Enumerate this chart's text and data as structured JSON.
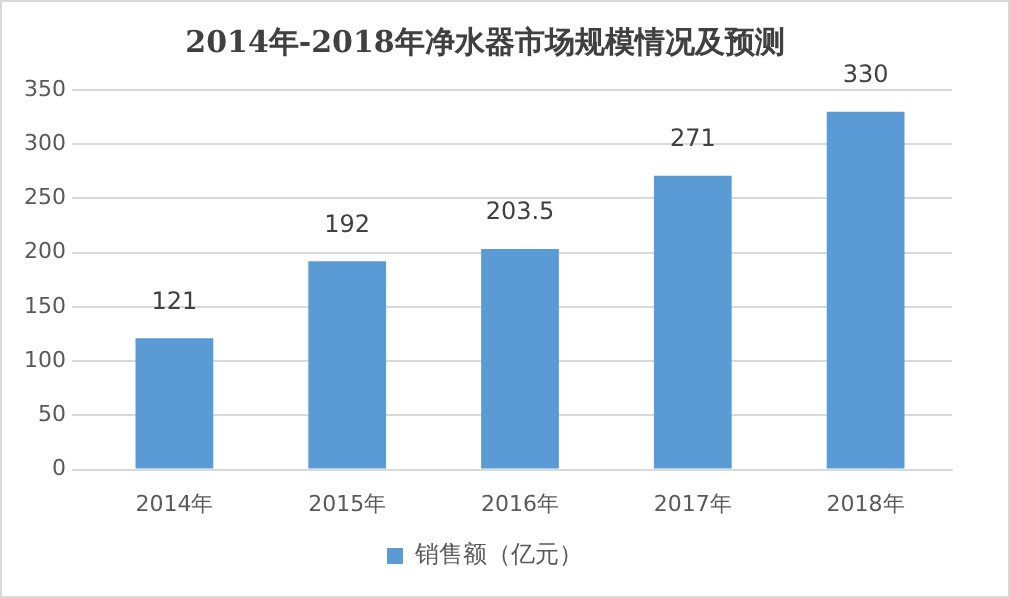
{
  "chart_data": {
    "type": "bar",
    "title": "2014年-2018年净水器市场规模情况及预测",
    "categories": [
      "2014年",
      "2015年",
      "2016年",
      "2017年",
      "2018年"
    ],
    "series": [
      {
        "name": "销售额（亿元）",
        "color": "#5b9bd5",
        "values": [
          121,
          192,
          203.5,
          271,
          330
        ]
      }
    ],
    "ylim": [
      0,
      350
    ],
    "yticks": [
      0,
      50,
      100,
      150,
      200,
      250,
      300,
      350
    ],
    "grid": "y",
    "legend": "bottom",
    "data_labels": true
  }
}
